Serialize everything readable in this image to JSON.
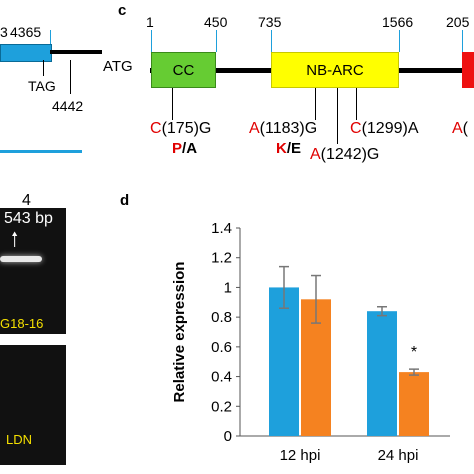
{
  "panel_a": {
    "coord_cut": "3",
    "coord_start": "4365",
    "stop_label": "TAG",
    "coord_end": "4442"
  },
  "panel_b": {
    "lane": "4",
    "band_size": "543 bp",
    "top_gel_label": "G18-16",
    "bottom_gel_label": "LDN"
  },
  "panel_c": {
    "letter": "c",
    "start_codon": "ATG",
    "positions": [
      "1",
      "450",
      "735",
      "1566",
      "205"
    ],
    "domains": [
      {
        "name": "CC",
        "color": "#66cc33"
      },
      {
        "name": "NB-ARC",
        "color": "#ffff00"
      },
      {
        "name": "",
        "color": "#ee1111"
      }
    ],
    "mutations": [
      {
        "ref": "C",
        "pos": "(175)",
        "alt": "G"
      },
      {
        "ref": "A",
        "pos": "(1183)",
        "alt": "G"
      },
      {
        "ref": "C",
        "pos": "(1299)",
        "alt": "A"
      },
      {
        "ref": "A",
        "pos": "(1242)",
        "alt": "G"
      },
      {
        "ref": "A",
        "pos": "(",
        "alt": ""
      }
    ],
    "aa_changes": [
      {
        "ref": "P",
        "sep": "/",
        "alt": "A"
      },
      {
        "ref": "K",
        "sep": "/",
        "alt": "E"
      }
    ]
  },
  "panel_d": {
    "letter": "d",
    "chart_data": {
      "type": "bar",
      "categories": [
        "12 hpi",
        "24 hpi"
      ],
      "series": [
        {
          "color": "#1ea0dc",
          "values": [
            1.0,
            0.84
          ],
          "errors": [
            0.14,
            0.03
          ]
        },
        {
          "color": "#f58220",
          "values": [
            0.92,
            0.43
          ],
          "errors": [
            0.16,
            0.02
          ]
        }
      ],
      "ylabel": "Relative expression",
      "ylim": [
        0,
        1.4
      ],
      "yticks": [
        "0",
        "0.2",
        "0.4",
        "0.6",
        "0.8",
        "1",
        "1.2",
        "1.4"
      ],
      "annotations": [
        {
          "text": "*",
          "category": "24 hpi",
          "series": 1
        }
      ]
    }
  }
}
